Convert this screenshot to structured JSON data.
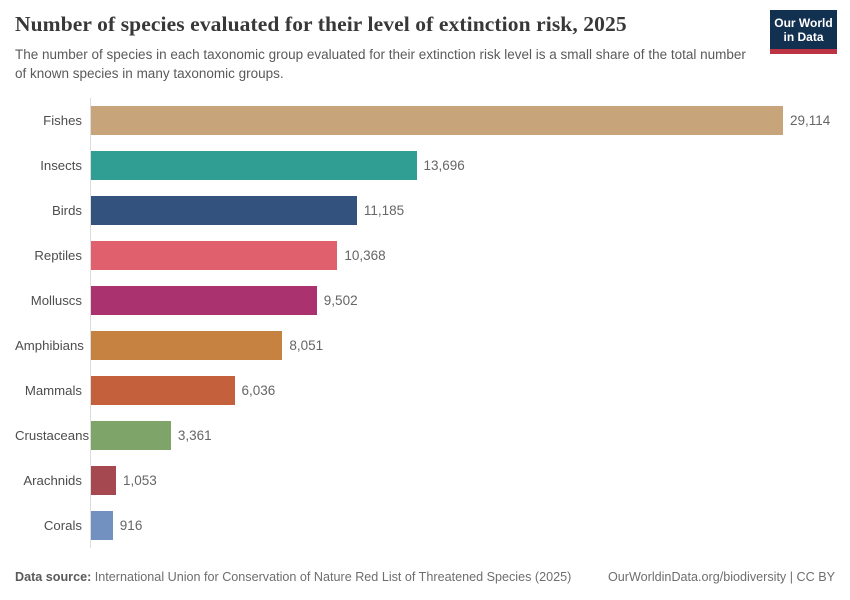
{
  "header": {
    "title": "Number of species evaluated for their level of extinction risk, 2025",
    "subtitle": "The number of species in each taxonomic group evaluated for their extinction risk level is a small share of the total number of known species in many taxonomic groups.",
    "logo": {
      "line1": "Our World",
      "line2": "in Data",
      "bg_color": "#12304f",
      "accent_color": "#bc3343"
    }
  },
  "chart_data": {
    "type": "bar",
    "orientation": "horizontal",
    "title": "Number of species evaluated for their level of extinction risk, 2025",
    "categories": [
      "Fishes",
      "Insects",
      "Birds",
      "Reptiles",
      "Molluscs",
      "Amphibians",
      "Mammals",
      "Crustaceans",
      "Arachnids",
      "Corals"
    ],
    "values": [
      29114,
      13696,
      11185,
      10368,
      9502,
      8051,
      6036,
      3361,
      1053,
      916
    ],
    "value_labels": [
      "29,114",
      "13,696",
      "11,185",
      "10,368",
      "9,502",
      "8,051",
      "6,036",
      "3,361",
      "1,053",
      "916"
    ],
    "bar_colors": [
      "#c8a47a",
      "#319e94",
      "#33527d",
      "#e0606e",
      "#aa336f",
      "#c58240",
      "#c4613c",
      "#7fa469",
      "#a5484f",
      "#7290c0"
    ],
    "xlabel": "",
    "ylabel": "",
    "xlim": [
      0,
      29114
    ],
    "grid": false,
    "legend": "none",
    "axis_line_color": "#dcdcdc"
  },
  "footer": {
    "source_label": "Data source:",
    "source_text": " International Union for Conservation of Nature Red List of Threatened Species (2025)",
    "right_text": "OurWorldinData.org/biodiversity | CC BY"
  }
}
